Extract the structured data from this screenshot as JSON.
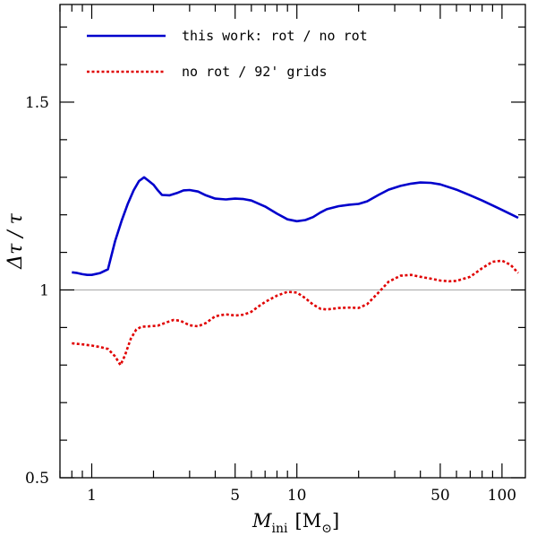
{
  "chart_data": {
    "type": "line",
    "xscale": "log",
    "xlim": [
      0.7,
      130
    ],
    "ylim": [
      0.5,
      1.76
    ],
    "xticks": [
      {
        "value": 1,
        "label": "1"
      },
      {
        "value": 5,
        "label": "5"
      },
      {
        "value": 10,
        "label": "10"
      },
      {
        "value": 50,
        "label": "50"
      },
      {
        "value": 100,
        "label": "100"
      }
    ],
    "yticks": [
      {
        "value": 0.5,
        "label": "0.5"
      },
      {
        "value": 1,
        "label": "1"
      },
      {
        "value": 1.5,
        "label": "1.5"
      }
    ],
    "xlabel": {
      "symbol": "M",
      "sub": "ini",
      "unit": "[M",
      "unit_sym": "⊙",
      "unit_end": "]"
    },
    "ylabel": {
      "text": "Δτ / τ"
    },
    "reference_line": {
      "y": 1.0,
      "color": "#b3b3b3"
    },
    "legend_position": "top-left",
    "series": [
      {
        "name": "this work: rot / no rot",
        "color": "#0000cc",
        "dash": "solid",
        "x": [
          0.8,
          0.85,
          0.9,
          0.95,
          1.0,
          1.1,
          1.2,
          1.3,
          1.4,
          1.5,
          1.6,
          1.7,
          1.8,
          1.9,
          2.0,
          2.1,
          2.2,
          2.4,
          2.6,
          2.8,
          3.0,
          3.3,
          3.6,
          4.0,
          4.5,
          5.0,
          5.5,
          6.0,
          7.0,
          8.0,
          9.0,
          10.0,
          11.0,
          12.0,
          13.0,
          14.0,
          16.0,
          18.0,
          20.0,
          22.0,
          25.0,
          28.0,
          32.0,
          36.0,
          40.0,
          45.0,
          50.0,
          60.0,
          70.0,
          80.0,
          90.0,
          100.0,
          110.0,
          120.0
        ],
        "values": [
          1.047,
          1.045,
          1.042,
          1.04,
          1.04,
          1.045,
          1.055,
          1.13,
          1.185,
          1.23,
          1.265,
          1.29,
          1.3,
          1.29,
          1.28,
          1.265,
          1.253,
          1.252,
          1.258,
          1.265,
          1.266,
          1.262,
          1.252,
          1.243,
          1.241,
          1.243,
          1.242,
          1.238,
          1.222,
          1.203,
          1.188,
          1.183,
          1.186,
          1.194,
          1.206,
          1.215,
          1.223,
          1.227,
          1.229,
          1.236,
          1.253,
          1.267,
          1.277,
          1.283,
          1.286,
          1.285,
          1.281,
          1.267,
          1.252,
          1.238,
          1.225,
          1.213,
          1.202,
          1.192
        ]
      },
      {
        "name": "no rot / 92' grids",
        "color": "#e00000",
        "dash": "dotted",
        "x": [
          0.8,
          0.9,
          1.0,
          1.1,
          1.2,
          1.3,
          1.38,
          1.45,
          1.55,
          1.65,
          1.75,
          1.9,
          2.1,
          2.3,
          2.5,
          2.7,
          3.0,
          3.3,
          3.6,
          4.0,
          4.5,
          5.0,
          5.5,
          6.0,
          6.5,
          7.0,
          8.0,
          9.0,
          10.0,
          11.0,
          12.0,
          13.0,
          14.0,
          16.0,
          18.0,
          20.0,
          22.0,
          25.0,
          28.0,
          32.0,
          36.0,
          40.0,
          45.0,
          50.0,
          55.0,
          60.0,
          70.0,
          80.0,
          90.0,
          100.0,
          110.0,
          120.0
        ],
        "values": [
          0.858,
          0.855,
          0.852,
          0.848,
          0.843,
          0.823,
          0.8,
          0.825,
          0.87,
          0.895,
          0.902,
          0.903,
          0.905,
          0.913,
          0.92,
          0.918,
          0.906,
          0.903,
          0.912,
          0.93,
          0.935,
          0.932,
          0.934,
          0.942,
          0.956,
          0.968,
          0.985,
          0.995,
          0.993,
          0.978,
          0.961,
          0.95,
          0.948,
          0.952,
          0.953,
          0.952,
          0.962,
          0.993,
          1.022,
          1.038,
          1.04,
          1.035,
          1.03,
          1.025,
          1.023,
          1.024,
          1.035,
          1.058,
          1.075,
          1.078,
          1.067,
          1.045
        ]
      }
    ]
  }
}
